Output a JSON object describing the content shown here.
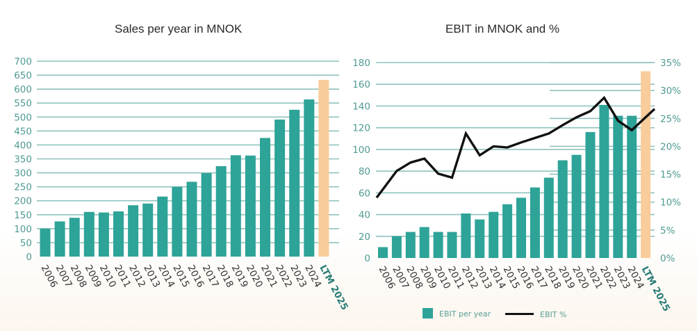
{
  "colors": {
    "bar": "#2ea398",
    "bar_ltm": "#f9cc9b",
    "grid": "#8fc3be",
    "axis_text": "#4f9a93",
    "line": "#111111"
  },
  "chart_data": [
    {
      "type": "bar",
      "title": "Sales per year in MNOK",
      "xlabel": "",
      "ylabel": "",
      "categories": [
        "2006",
        "2007",
        "2008",
        "2009",
        "2010",
        "2011",
        "2012",
        "2013",
        "2014",
        "2015",
        "2016",
        "2017",
        "2018",
        "2019",
        "2020",
        "2021",
        "2022",
        "2023",
        "2024",
        "LTM 2025"
      ],
      "values": [
        100,
        126,
        139,
        160,
        158,
        162,
        184,
        190,
        215,
        250,
        268,
        299,
        324,
        363,
        362,
        425,
        491,
        526,
        563,
        633
      ],
      "highlight_last": true,
      "ylim": [
        0,
        700
      ],
      "yticks": [
        0,
        50,
        100,
        150,
        200,
        250,
        300,
        350,
        400,
        450,
        500,
        550,
        600,
        650,
        700
      ],
      "grid": true,
      "legend": "none"
    },
    {
      "type": "bar+line",
      "title": "EBIT in MNOK and %",
      "categories": [
        "2006",
        "2007",
        "2008",
        "2009",
        "2010",
        "2011",
        "2012",
        "2013",
        "2014",
        "2015",
        "2016",
        "2017",
        "2018",
        "2019",
        "2020",
        "2021",
        "2022",
        "2023",
        "2024",
        "LTM 2025"
      ],
      "series": [
        {
          "name": "EBIT per year",
          "type": "bar",
          "axis": "left",
          "values": [
            10,
            20,
            24,
            28.5,
            24,
            24,
            41,
            35.5,
            42.5,
            49.5,
            55.5,
            65,
            74,
            90,
            95,
            116,
            141,
            131,
            131,
            172
          ]
        },
        {
          "name": "EBIT %",
          "type": "line",
          "axis": "right",
          "values": [
            10.8,
            15.6,
            17.1,
            17.8,
            15.1,
            14.4,
            22.3,
            18.4,
            20.0,
            19.8,
            20.7,
            21.5,
            22.3,
            23.8,
            25.2,
            26.3,
            28.7,
            24.6,
            22.9,
            26.7
          ]
        }
      ],
      "highlight_last": true,
      "ylim_left": [
        0,
        180
      ],
      "yticks_left": [
        0,
        20,
        40,
        60,
        80,
        100,
        120,
        140,
        160,
        180
      ],
      "ylim_right": [
        0,
        35
      ],
      "yticks_right": [
        "0%",
        "5%",
        "10%",
        "15%",
        "20%",
        "25%",
        "30%",
        "35%"
      ],
      "grid": true,
      "legend": "bottom-center"
    }
  ]
}
